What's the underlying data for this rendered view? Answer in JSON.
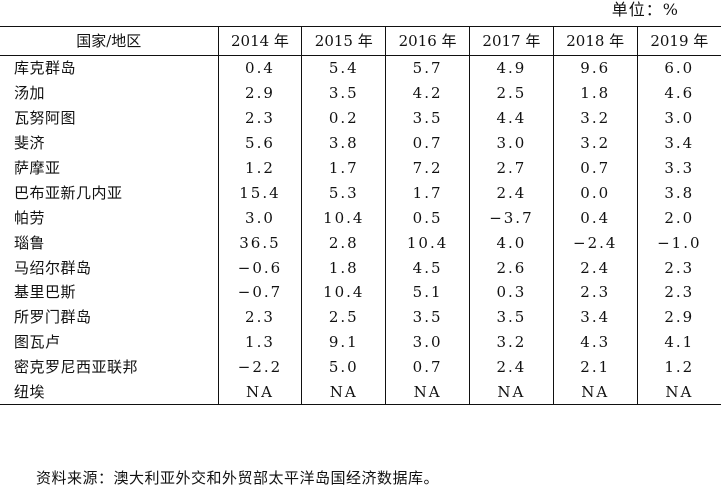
{
  "unit_label": "单位：%",
  "table": {
    "headers": [
      "国家/地区",
      "2014 年",
      "2015 年",
      "2016 年",
      "2017 年",
      "2018 年",
      "2019 年"
    ],
    "rows": [
      {
        "name": "库克群岛",
        "values": [
          "0.4",
          "5.4",
          "5.7",
          "4.9",
          "9.6",
          "6.0"
        ]
      },
      {
        "name": "汤加",
        "values": [
          "2.9",
          "3.5",
          "4.2",
          "2.5",
          "1.8",
          "4.6"
        ]
      },
      {
        "name": "瓦努阿图",
        "values": [
          "2.3",
          "0.2",
          "3.5",
          "4.4",
          "3.2",
          "3.0"
        ]
      },
      {
        "name": "斐济",
        "values": [
          "5.6",
          "3.8",
          "0.7",
          "3.0",
          "3.2",
          "3.4"
        ]
      },
      {
        "name": "萨摩亚",
        "values": [
          "1.2",
          "1.7",
          "7.2",
          "2.7",
          "0.7",
          "3.3"
        ]
      },
      {
        "name": "巴布亚新几内亚",
        "values": [
          "15.4",
          "5.3",
          "1.7",
          "2.4",
          "0.0",
          "3.8"
        ]
      },
      {
        "name": "帕劳",
        "values": [
          "3.0",
          "10.4",
          "0.5",
          "−3.7",
          "0.4",
          "2.0"
        ]
      },
      {
        "name": "瑙鲁",
        "values": [
          "36.5",
          "2.8",
          "10.4",
          "4.0",
          "−2.4",
          "−1.0"
        ]
      },
      {
        "name": "马绍尔群岛",
        "values": [
          "−0.6",
          "1.8",
          "4.5",
          "2.6",
          "2.4",
          "2.3"
        ]
      },
      {
        "name": "基里巴斯",
        "values": [
          "−0.7",
          "10.4",
          "5.1",
          "0.3",
          "2.3",
          "2.3"
        ]
      },
      {
        "name": "所罗门群岛",
        "values": [
          "2.3",
          "2.5",
          "3.5",
          "3.5",
          "3.4",
          "2.9"
        ]
      },
      {
        "name": "图瓦卢",
        "values": [
          "1.3",
          "9.1",
          "3.0",
          "3.2",
          "4.3",
          "4.1"
        ]
      },
      {
        "name": "密克罗尼西亚联邦",
        "values": [
          "−2.2",
          "5.0",
          "0.7",
          "2.4",
          "2.1",
          "1.2"
        ]
      },
      {
        "name": "纽埃",
        "values": [
          "NA",
          "NA",
          "NA",
          "NA",
          "NA",
          "NA"
        ]
      }
    ]
  },
  "source_note": "资料来源：澳大利亚外交和外贸部太平洋岛国经济数据库。"
}
